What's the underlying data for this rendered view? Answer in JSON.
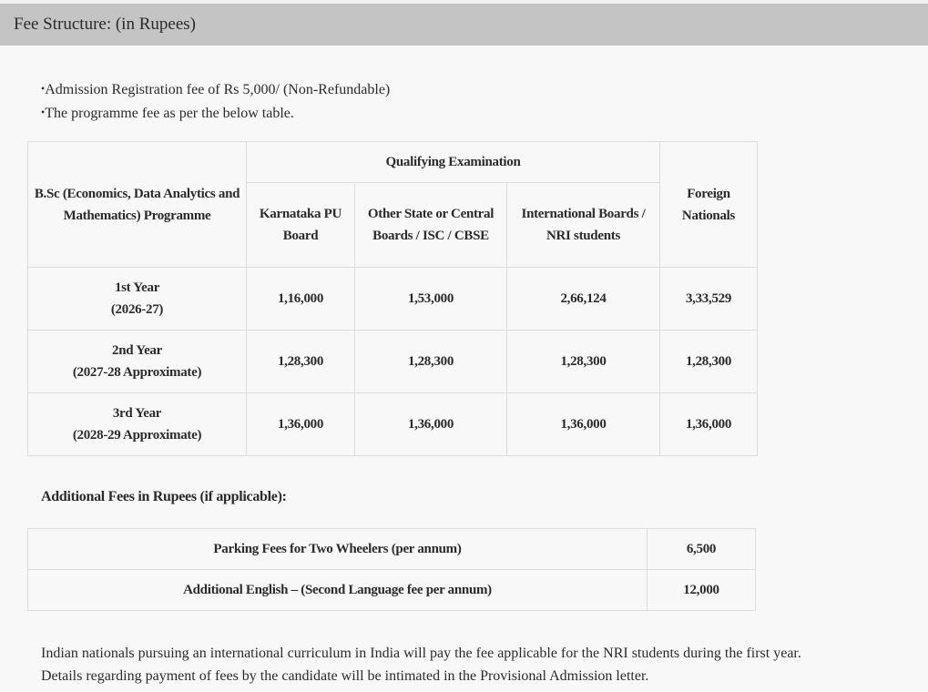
{
  "header": {
    "title": "Fee Structure: (in Rupees)"
  },
  "bullets": [
    "Admission Registration fee of Rs 5,000/ (Non-Refundable)",
    "The programme fee as per the below table."
  ],
  "fee_table": {
    "programme_header": "B.Sc (Economics, Data Analytics and Mathematics) Programme",
    "group_header": "Qualifying Examination",
    "columns": [
      "Karnataka PU Board",
      "Other State or Central Boards / ISC / CBSE",
      "International Boards / NRI students",
      "Foreign Nationals"
    ],
    "rows": [
      {
        "year": "1st Year",
        "period": "(2026-27)",
        "values": [
          "1,16,000",
          "1,53,000",
          "2,66,124",
          "3,33,529"
        ]
      },
      {
        "year": "2nd Year",
        "period": "(2027-28 Approximate)",
        "values": [
          "1,28,300",
          "1,28,300",
          "1,28,300",
          "1,28,300"
        ]
      },
      {
        "year": "3rd Year",
        "period": "(2028-29 Approximate)",
        "values": [
          "1,36,000",
          "1,36,000",
          "1,36,000",
          "1,36,000"
        ]
      }
    ]
  },
  "additional": {
    "heading": "Additional Fees in Rupees (if applicable):",
    "rows": [
      {
        "label": "Parking Fees for Two Wheelers (per annum)",
        "value": "6,500"
      },
      {
        "label": "Additional English – (Second Language fee per annum)",
        "value": "12,000"
      }
    ]
  },
  "notes": [
    "Indian nationals pursuing an international curriculum in India will pay the fee applicable for the NRI students during the first year.",
    "Details regarding payment of fees by the candidate will be intimated in the Provisional Admission letter."
  ]
}
